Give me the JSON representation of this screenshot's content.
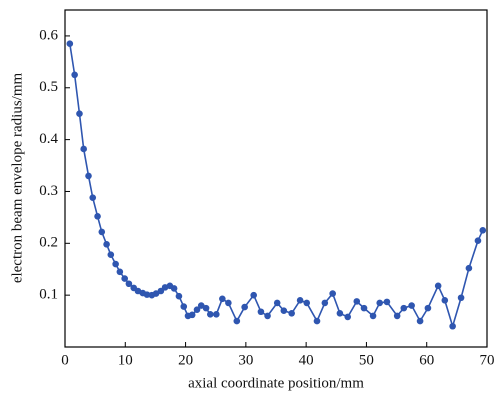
{
  "chart_data": {
    "type": "line",
    "xlabel": "axial coordinate position/mm",
    "ylabel": "electron beam envelope radius/mm",
    "x": [
      0.8,
      1.6,
      2.4,
      3.1,
      3.9,
      4.6,
      5.4,
      6.1,
      6.9,
      7.6,
      8.4,
      9.1,
      9.9,
      10.6,
      11.4,
      12.1,
      12.9,
      13.6,
      14.4,
      15.1,
      15.9,
      16.6,
      17.4,
      18.1,
      18.9,
      19.7,
      20.4,
      21.1,
      21.9,
      22.6,
      23.4,
      24.1,
      25.1,
      26.1,
      27.1,
      28.5,
      29.8,
      31.3,
      32.5,
      33.6,
      35.2,
      36.3,
      37.6,
      39.0,
      40.1,
      41.8,
      43.1,
      44.4,
      45.6,
      46.9,
      48.4,
      49.6,
      51.1,
      52.2,
      53.4,
      55.1,
      56.2,
      57.5,
      58.9,
      60.2,
      61.9,
      63.0,
      64.3,
      65.7,
      67.0,
      68.5,
      69.3
    ],
    "series": [
      {
        "color": "#2f56b0",
        "values": [
          0.585,
          0.525,
          0.45,
          0.382,
          0.33,
          0.288,
          0.252,
          0.222,
          0.198,
          0.178,
          0.16,
          0.145,
          0.132,
          0.122,
          0.114,
          0.108,
          0.104,
          0.101,
          0.1,
          0.103,
          0.108,
          0.115,
          0.118,
          0.113,
          0.098,
          0.078,
          0.06,
          0.062,
          0.072,
          0.08,
          0.075,
          0.063,
          0.063,
          0.093,
          0.085,
          0.05,
          0.077,
          0.1,
          0.068,
          0.06,
          0.085,
          0.07,
          0.065,
          0.09,
          0.085,
          0.05,
          0.085,
          0.103,
          0.065,
          0.058,
          0.088,
          0.075,
          0.06,
          0.085,
          0.087,
          0.06,
          0.075,
          0.08,
          0.05,
          0.075,
          0.118,
          0.09,
          0.04,
          0.095,
          0.152,
          0.205,
          0.225
        ]
      }
    ],
    "xlim": [
      0,
      70
    ],
    "ylim": [
      0,
      0.65
    ],
    "xticks": [
      0,
      10,
      20,
      30,
      40,
      50,
      60,
      70
    ],
    "yticks": [
      0.1,
      0.2,
      0.3,
      0.4,
      0.5,
      0.6
    ],
    "grid": false
  }
}
